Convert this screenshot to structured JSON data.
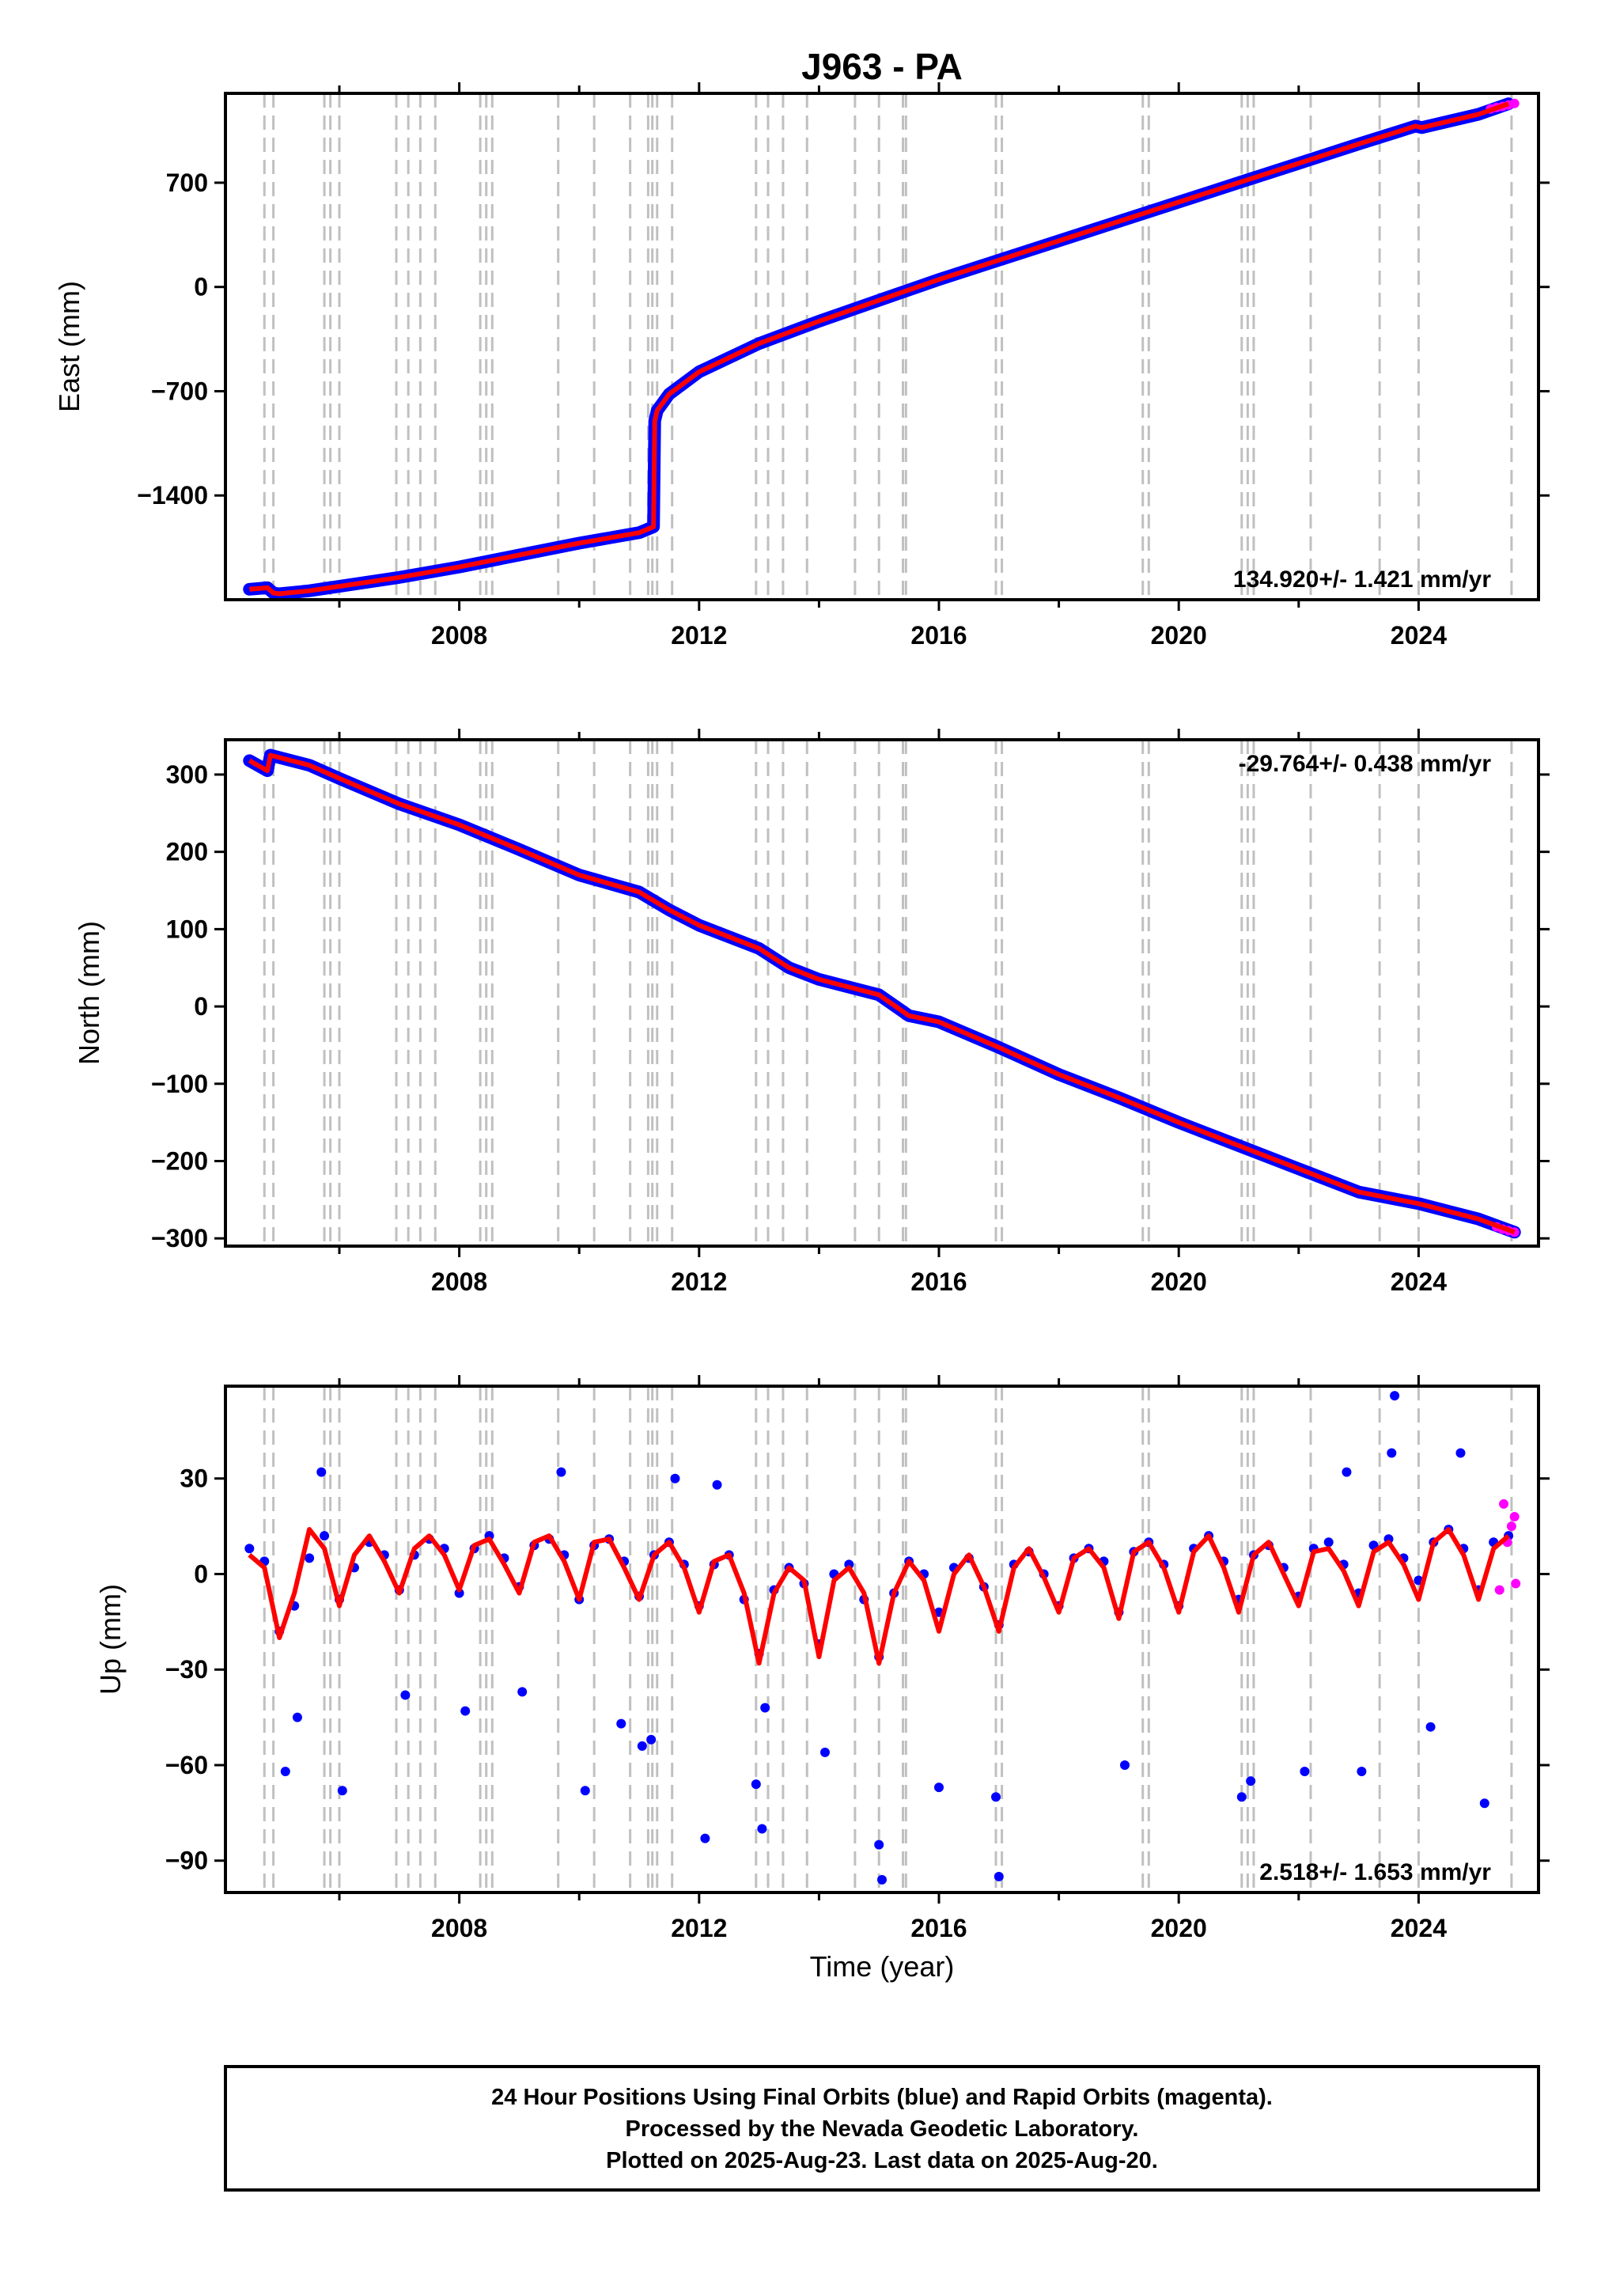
{
  "title": "J963 - PA",
  "xlabel": "Time (year)",
  "footer": {
    "line1": "24 Hour Positions Using Final Orbits (blue) and Rapid Orbits (magenta).",
    "line2": "Processed by the Nevada Geodetic Laboratory.",
    "line3": "Plotted on 2025-Aug-23. Last data on 2025-Aug-20."
  },
  "colors": {
    "final": "#0000ff",
    "rapid": "#ff00ff",
    "model": "#ff0000",
    "steps": "#c0c0c0",
    "axes": "#000000"
  },
  "chart_data": [
    {
      "type": "scatter",
      "ylabel": "East (mm)",
      "rate": "134.920+/- 1.421 mm/yr",
      "xlim": [
        2004.1,
        2026.0
      ],
      "ylim": [
        -2100,
        1300
      ],
      "yticks": [
        -1400,
        -700,
        0,
        700
      ],
      "ytick_labels": [
        "−1400",
        "−700",
        "0",
        "700"
      ],
      "xticks": [
        2008,
        2012,
        2016,
        2020,
        2024
      ],
      "series": [
        {
          "role": "final",
          "x": [
            2004.5,
            2004.8,
            2004.9,
            2005.0,
            2005.5,
            2006.0,
            2007.0,
            2008.0,
            2009.0,
            2010.0,
            2011.0,
            2011.24,
            2011.26,
            2011.3,
            2011.5,
            2012.0,
            2013.0,
            2014.0,
            2015.0,
            2016.0,
            2017.0,
            2018.0,
            2019.0,
            2020.0,
            2021.0,
            2022.0,
            2023.0,
            2023.95,
            2024.05,
            2025.0,
            2025.5
          ],
          "y": [
            -2030,
            -2020,
            -2055,
            -2060,
            -2040,
            -2010,
            -1950,
            -1880,
            -1800,
            -1720,
            -1650,
            -1610,
            -900,
            -830,
            -720,
            -570,
            -380,
            -230,
            -90,
            50,
            180,
            310,
            440,
            570,
            700,
            830,
            960,
            1080,
            1070,
            1160,
            1230
          ]
        },
        {
          "role": "rapid",
          "x": [
            2025.2,
            2025.3,
            2025.4,
            2025.5,
            2025.6
          ],
          "y": [
            1195,
            1205,
            1212,
            1222,
            1232
          ]
        }
      ],
      "model": {
        "x": [
          2004.5,
          2004.8,
          2004.9,
          2005.0,
          2005.5,
          2006.0,
          2007.0,
          2008.0,
          2009.0,
          2010.0,
          2011.0,
          2011.24,
          2011.26,
          2011.3,
          2011.5,
          2012.0,
          2013.0,
          2014.0,
          2015.0,
          2016.0,
          2017.0,
          2018.0,
          2019.0,
          2020.0,
          2021.0,
          2022.0,
          2023.0,
          2023.95,
          2024.05,
          2025.0,
          2025.5
        ],
        "y": [
          -2030,
          -2020,
          -2055,
          -2060,
          -2040,
          -2010,
          -1950,
          -1880,
          -1800,
          -1720,
          -1650,
          -1610,
          -900,
          -830,
          -720,
          -570,
          -380,
          -230,
          -90,
          50,
          180,
          310,
          440,
          570,
          700,
          830,
          960,
          1080,
          1070,
          1160,
          1230
        ]
      },
      "rate_position": "bottom-right"
    },
    {
      "type": "scatter",
      "ylabel": "North (mm)",
      "rate": "-29.764+/- 0.438 mm/yr",
      "xlim": [
        2004.1,
        2026.0
      ],
      "ylim": [
        -310,
        345
      ],
      "yticks": [
        -300,
        -200,
        -100,
        0,
        100,
        200,
        300
      ],
      "ytick_labels": [
        "−300",
        "−200",
        "−100",
        "0",
        "100",
        "200",
        "300"
      ],
      "xticks": [
        2008,
        2012,
        2016,
        2020,
        2024
      ],
      "series": [
        {
          "role": "final",
          "x": [
            2004.5,
            2004.8,
            2004.85,
            2005.0,
            2005.5,
            2006.0,
            2007.0,
            2008.0,
            2009.0,
            2010.0,
            2011.0,
            2011.5,
            2012.0,
            2013.0,
            2013.5,
            2014.0,
            2015.0,
            2015.5,
            2016.0,
            2017.0,
            2018.0,
            2019.0,
            2020.0,
            2021.0,
            2022.0,
            2023.0,
            2024.0,
            2025.0,
            2025.6
          ],
          "y": [
            318,
            305,
            325,
            322,
            312,
            295,
            262,
            235,
            203,
            170,
            148,
            125,
            105,
            75,
            50,
            35,
            15,
            -12,
            -20,
            -53,
            -88,
            -118,
            -150,
            -180,
            -210,
            -240,
            -255,
            -275,
            -292
          ]
        },
        {
          "role": "rapid",
          "x": [
            2025.3,
            2025.4,
            2025.5,
            2025.6
          ],
          "y": [
            -285,
            -288,
            -290,
            -292
          ]
        }
      ],
      "model": {
        "x": [
          2004.5,
          2004.8,
          2004.85,
          2005.0,
          2005.5,
          2006.0,
          2007.0,
          2008.0,
          2009.0,
          2010.0,
          2011.0,
          2011.5,
          2012.0,
          2013.0,
          2013.5,
          2014.0,
          2015.0,
          2015.5,
          2016.0,
          2017.0,
          2018.0,
          2019.0,
          2020.0,
          2021.0,
          2022.0,
          2023.0,
          2024.0,
          2025.0,
          2025.6
        ],
        "y": [
          318,
          305,
          325,
          322,
          312,
          295,
          262,
          235,
          203,
          170,
          148,
          125,
          105,
          75,
          50,
          35,
          15,
          -12,
          -20,
          -53,
          -88,
          -118,
          -150,
          -180,
          -210,
          -240,
          -255,
          -275,
          -292
        ]
      },
      "rate_position": "top-right"
    },
    {
      "type": "scatter",
      "ylabel": "Up (mm)",
      "rate": "2.518+/- 1.653 mm/yr",
      "xlim": [
        2004.1,
        2026.0
      ],
      "ylim": [
        -100,
        59
      ],
      "yticks": [
        -90,
        -60,
        -30,
        0,
        30
      ],
      "ytick_labels": [
        "−90",
        "−60",
        "−30",
        "0",
        "30"
      ],
      "xticks": [
        2008,
        2012,
        2016,
        2020,
        2024
      ],
      "series": [
        {
          "role": "final",
          "x": [
            2004.5,
            2004.75,
            2005.0,
            2005.25,
            2005.5,
            2005.75,
            2006.0,
            2006.25,
            2006.5,
            2006.75,
            2007.0,
            2007.25,
            2007.5,
            2007.75,
            2008.0,
            2008.25,
            2008.5,
            2008.75,
            2009.0,
            2009.25,
            2009.5,
            2009.75,
            2010.0,
            2010.25,
            2010.5,
            2010.75,
            2011.0,
            2011.25,
            2011.5,
            2011.75,
            2012.0,
            2012.25,
            2012.5,
            2012.75,
            2013.0,
            2013.25,
            2013.5,
            2013.75,
            2014.0,
            2014.25,
            2014.5,
            2014.75,
            2015.0,
            2015.25,
            2015.5,
            2015.75,
            2016.0,
            2016.25,
            2016.5,
            2016.75,
            2017.0,
            2017.25,
            2017.5,
            2017.75,
            2018.0,
            2018.25,
            2018.5,
            2018.75,
            2019.0,
            2019.25,
            2019.5,
            2019.75,
            2020.0,
            2020.25,
            2020.5,
            2020.75,
            2021.0,
            2021.25,
            2021.5,
            2021.75,
            2022.0,
            2022.25,
            2022.5,
            2022.75,
            2023.0,
            2023.25,
            2023.5,
            2023.75,
            2024.0,
            2024.25,
            2024.5,
            2024.75,
            2025.0,
            2025.25,
            2025.5,
            2005.1,
            2005.3,
            2006.05,
            2007.1,
            2008.1,
            2009.05,
            2010.1,
            2010.7,
            2011.05,
            2011.2,
            2012.1,
            2012.95,
            2013.05,
            2013.1,
            2014.1,
            2015.0,
            2015.05,
            2016.0,
            2016.95,
            2017.0,
            2019.1,
            2021.05,
            2021.2,
            2022.1,
            2023.05,
            2023.6,
            2024.2,
            2025.1,
            2023.55,
            2024.7,
            2005.7,
            2009.7,
            2022.8,
            2011.6,
            2012.3
          ],
          "y": [
            8,
            4,
            -18,
            -10,
            5,
            12,
            -8,
            2,
            10,
            6,
            -5,
            6,
            11,
            8,
            -6,
            8,
            12,
            5,
            -4,
            9,
            11,
            6,
            -8,
            9,
            11,
            4,
            -7,
            6,
            10,
            3,
            -10,
            3,
            6,
            -8,
            -25,
            -5,
            2,
            -3,
            -22,
            0,
            3,
            -8,
            -26,
            -6,
            4,
            0,
            -12,
            2,
            5,
            -4,
            -16,
            3,
            7,
            0,
            -10,
            5,
            8,
            4,
            -12,
            7,
            10,
            3,
            -10,
            8,
            12,
            4,
            -8,
            6,
            9,
            2,
            -7,
            8,
            10,
            3,
            -6,
            9,
            11,
            5,
            -2,
            10,
            14,
            8,
            -5,
            10,
            12,
            -62,
            -45,
            -68,
            -38,
            -43,
            -37,
            -68,
            -47,
            -54,
            -52,
            -83,
            -66,
            -80,
            -42,
            -56,
            -85,
            -96,
            -67,
            -70,
            -95,
            -60,
            -70,
            -65,
            -62,
            -62,
            56,
            -48,
            -72,
            38,
            38,
            32,
            32,
            32,
            30,
            28
          ]
        },
        {
          "role": "rapid",
          "x": [
            2025.35,
            2025.42,
            2025.48,
            2025.55,
            2025.6,
            2025.62
          ],
          "y": [
            -5,
            22,
            10,
            15,
            18,
            -3
          ]
        }
      ],
      "model": {
        "x": [
          2004.5,
          2004.75,
          2005.0,
          2005.25,
          2005.5,
          2005.75,
          2006.0,
          2006.25,
          2006.5,
          2006.75,
          2007.0,
          2007.25,
          2007.5,
          2007.75,
          2008.0,
          2008.25,
          2008.5,
          2008.75,
          2009.0,
          2009.25,
          2009.5,
          2009.75,
          2010.0,
          2010.25,
          2010.5,
          2010.75,
          2011.0,
          2011.25,
          2011.5,
          2011.75,
          2012.0,
          2012.25,
          2012.5,
          2012.75,
          2013.0,
          2013.25,
          2013.5,
          2013.75,
          2014.0,
          2014.25,
          2014.5,
          2014.75,
          2015.0,
          2015.25,
          2015.5,
          2015.75,
          2016.0,
          2016.25,
          2016.5,
          2016.75,
          2017.0,
          2017.25,
          2017.5,
          2017.75,
          2018.0,
          2018.25,
          2018.5,
          2018.75,
          2019.0,
          2019.25,
          2019.5,
          2019.75,
          2020.0,
          2020.25,
          2020.5,
          2020.75,
          2021.0,
          2021.25,
          2021.5,
          2021.75,
          2022.0,
          2022.25,
          2022.5,
          2022.75,
          2023.0,
          2023.25,
          2023.5,
          2023.75,
          2024.0,
          2024.25,
          2024.5,
          2024.75,
          2025.0,
          2025.25,
          2025.5
        ],
        "y": [
          6,
          2,
          -20,
          -6,
          14,
          8,
          -10,
          6,
          12,
          4,
          -6,
          8,
          12,
          6,
          -5,
          9,
          11,
          3,
          -6,
          10,
          12,
          4,
          -8,
          10,
          11,
          2,
          -8,
          6,
          10,
          2,
          -12,
          4,
          6,
          -6,
          -28,
          -6,
          2,
          -2,
          -26,
          -2,
          2,
          -6,
          -28,
          -6,
          4,
          -2,
          -18,
          0,
          6,
          -4,
          -18,
          2,
          8,
          -1,
          -12,
          5,
          8,
          2,
          -14,
          7,
          10,
          2,
          -12,
          7,
          12,
          2,
          -12,
          6,
          10,
          0,
          -10,
          7,
          8,
          1,
          -10,
          7,
          10,
          3,
          -8,
          10,
          14,
          6,
          -8,
          8,
          12
        ]
      },
      "rate_position": "bottom-right"
    }
  ],
  "step_lines_x": [
    2004.75,
    2004.9,
    2005.75,
    2005.85,
    2006.0,
    2006.95,
    2007.15,
    2007.35,
    2007.6,
    2008.35,
    2008.45,
    2008.55,
    2009.65,
    2010.25,
    2010.85,
    2011.15,
    2011.22,
    2011.3,
    2011.55,
    2012.95,
    2013.15,
    2013.4,
    2013.8,
    2014.6,
    2015.0,
    2015.4,
    2015.45,
    2016.95,
    2017.05,
    2019.4,
    2019.5,
    2021.05,
    2021.15,
    2021.25,
    2022.2,
    2023.35,
    2024.0,
    2025.55
  ]
}
